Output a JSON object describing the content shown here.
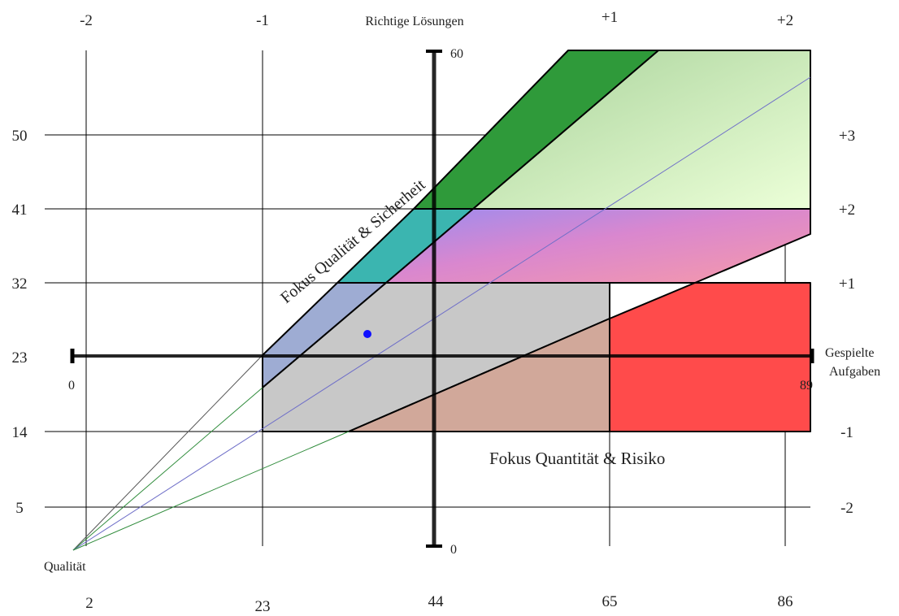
{
  "top_labels": [
    "-2",
    "-1",
    "Richtige Lösungen",
    "+1",
    "+2"
  ],
  "left_labels": [
    "50",
    "41",
    "32",
    "23",
    "14",
    "5"
  ],
  "right_labels": [
    "+3",
    "+2",
    "+1",
    "-1",
    "-2"
  ],
  "right_axis_title_1": "Gespielte",
  "right_axis_title_2": "Aufgaben",
  "bottom_labels": [
    "2",
    "23",
    "44",
    "65",
    "86"
  ],
  "corner_label": "Qualität",
  "vertical_axis_max": "60",
  "vertical_axis_min": "0",
  "horizontal_axis_min": "0",
  "horizontal_axis_max": "89",
  "region_label_quality": "Fokus Qualität & Sicherheit",
  "region_label_quantity": "Fokus Quantität & Risiko",
  "colors": {
    "dark_green": "#2f9a3a",
    "light_green": "#e2fcc8",
    "teal": "#3bb5b0",
    "pink_purple": "#c47ad0",
    "gray": "#c8c8c8",
    "red": "#ff4b4b",
    "marker": "#1010ff"
  }
}
